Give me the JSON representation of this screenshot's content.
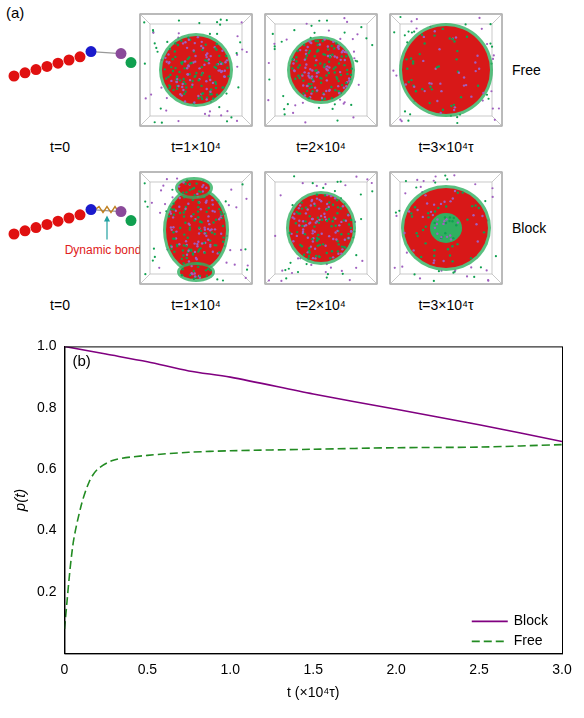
{
  "diagram": {
    "panel_label": "(a)",
    "time_labels": [
      "t=0",
      "t=1×10⁴",
      "t=2×10⁴",
      "t=3×10⁴τ"
    ],
    "rows": [
      {
        "label": "Free"
      },
      {
        "label": "Block",
        "annotation": "Dynamic bond"
      }
    ]
  },
  "chart_data": {
    "type": "line",
    "panel_label": "(b)",
    "x_label": "t (×10⁴τ)",
    "y_label": "p(t)",
    "xlim": [
      0,
      3.0
    ],
    "xticks": [
      0,
      0.5,
      {
        "value": 1,
        "label": "1.0"
      },
      1.5,
      {
        "value": 2,
        "label": "2.0"
      },
      2.5,
      {
        "value": 3,
        "label": "3.0"
      }
    ],
    "ylim": [
      0,
      1.0
    ],
    "yticks": [
      0.2,
      0.4,
      0.6,
      0.8,
      {
        "value": 1,
        "label": "1.0"
      }
    ],
    "grid": false,
    "legend": "lower right",
    "series": [
      {
        "name": "Block",
        "color": "#800080",
        "line_style": "solid",
        "x": [
          0,
          0.25,
          0.5,
          0.75,
          1.0,
          1.5,
          2.0,
          2.5,
          3.0
        ],
        "values": [
          1.0,
          0.975,
          0.95,
          0.92,
          0.9,
          0.845,
          0.795,
          0.745,
          0.69
        ]
      },
      {
        "name": "Free",
        "color": "#228b22",
        "line_style": "dashed",
        "x": [
          0,
          0.05,
          0.1,
          0.15,
          0.2,
          0.3,
          0.5,
          0.75,
          1.0,
          1.5,
          2.0,
          2.5,
          3.0
        ],
        "values": [
          0.08,
          0.35,
          0.48,
          0.56,
          0.6,
          0.63,
          0.645,
          0.655,
          0.66,
          0.665,
          0.67,
          0.672,
          0.68
        ]
      }
    ]
  }
}
